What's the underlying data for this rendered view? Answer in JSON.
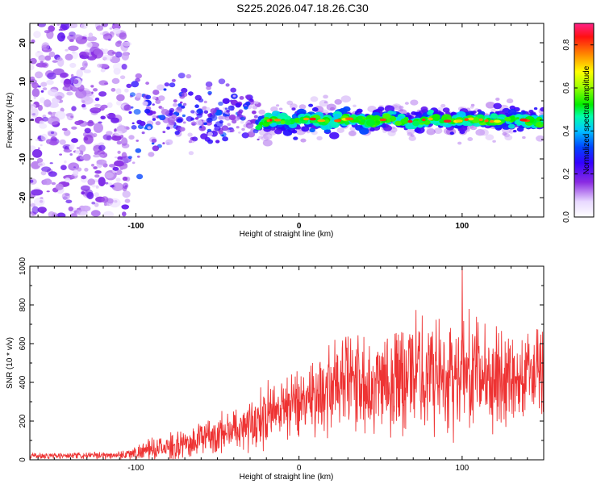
{
  "title": "S225.2026.047.18.26.C30",
  "chart_data": [
    {
      "type": "heatmap",
      "xlabel": "Height of straight line (km)",
      "ylabel": "Frequency (Hz)",
      "xlim": [
        -165,
        150
      ],
      "ylim": [
        -25,
        25
      ],
      "xticks": [
        -100,
        0,
        100
      ],
      "xtick_labels": [
        "-100",
        "0",
        "100"
      ],
      "yticks": [
        -20,
        -10,
        0,
        10,
        20
      ],
      "ytick_labels": [
        "-20",
        "-10",
        "0",
        "10",
        "20"
      ],
      "description_values": {
        "noise_region_x": [
          -165,
          -105
        ],
        "transition_region_x": [
          -105,
          -25
        ],
        "ridge_region_x": [
          -25,
          150
        ],
        "ridge_frequency_hz": 0,
        "ridge_peak_amplitude": 0.9
      },
      "colorbar": {
        "label": "Normalized spectral amplitude",
        "range": [
          0.0,
          0.9
        ],
        "ticks": [
          0.0,
          0.2,
          0.4,
          0.6,
          0.8
        ],
        "tick_labels": [
          "0.0",
          "0.2",
          "0.4",
          "0.6",
          "0.8"
        ]
      }
    },
    {
      "type": "line",
      "xlabel": "Height of straight line (km)",
      "ylabel": "SNR (10 * v/v)",
      "xlim": [
        -165,
        150
      ],
      "ylim": [
        0,
        1000
      ],
      "xticks": [
        -100,
        0,
        100
      ],
      "xtick_labels": [
        "-100",
        "0",
        "100"
      ],
      "yticks": [
        0,
        200,
        400,
        600,
        800,
        1000
      ],
      "ytick_labels": [
        "0",
        "200",
        "400",
        "600",
        "800",
        "1000"
      ],
      "series": [
        {
          "name": "SNR",
          "color": "#ee3333",
          "x": [
            -165,
            -140,
            -120,
            -110,
            -100,
            -90,
            -80,
            -70,
            -60,
            -50,
            -40,
            -30,
            -20,
            -10,
            0,
            10,
            20,
            30,
            40,
            50,
            60,
            70,
            80,
            90,
            100,
            110,
            120,
            130,
            140,
            150
          ],
          "mean": [
            20,
            20,
            22,
            25,
            35,
            55,
            65,
            80,
            110,
            130,
            160,
            190,
            230,
            280,
            310,
            340,
            370,
            400,
            410,
            420,
            430,
            440,
            450,
            440,
            450,
            440,
            430,
            430,
            430,
            440
          ],
          "spread": [
            18,
            18,
            20,
            25,
            40,
            60,
            70,
            80,
            95,
            110,
            130,
            150,
            170,
            190,
            210,
            230,
            260,
            280,
            300,
            310,
            320,
            330,
            330,
            320,
            340,
            300,
            290,
            270,
            260,
            240
          ],
          "peak_x": 100,
          "peak_y": 1000
        }
      ]
    }
  ]
}
